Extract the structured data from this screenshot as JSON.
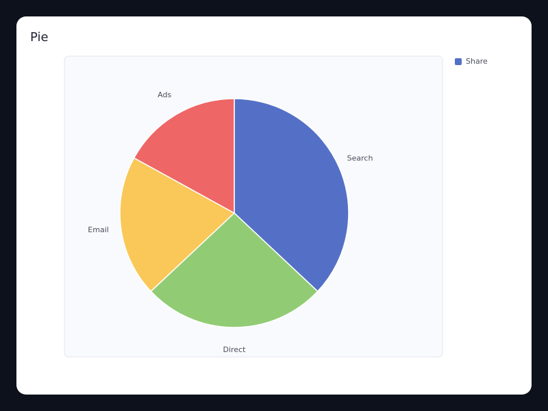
{
  "card": {
    "title": "Pie"
  },
  "chart_data": {
    "type": "pie",
    "title": "Pie",
    "series": [
      {
        "name": "Share",
        "categories": [
          "Search",
          "Direct",
          "Email",
          "Ads"
        ],
        "values": [
          37,
          26,
          20,
          17
        ]
      }
    ],
    "colors": [
      "#5470c6",
      "#91cc75",
      "#fac858",
      "#ee6666"
    ],
    "legend_position": "top-right",
    "legend": [
      "Share"
    ]
  }
}
